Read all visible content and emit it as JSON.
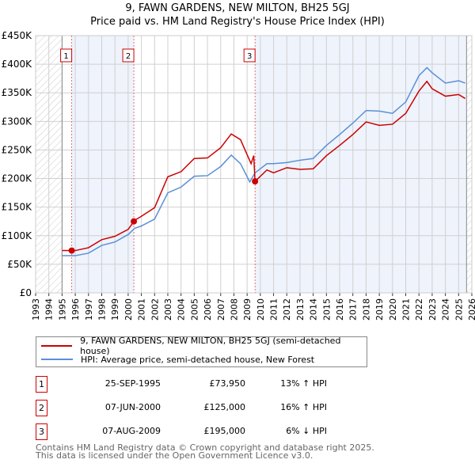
{
  "chart_data": {
    "type": "line",
    "title": "9, FAWN GARDENS, NEW MILTON, BH25 5GJ",
    "subtitle": "Price paid vs. HM Land Registry's House Price Index (HPI)",
    "xlim": [
      1993,
      2026
    ],
    "ylim": [
      0,
      450000
    ],
    "x_ticks": [
      "1993",
      "1994",
      "1995",
      "1996",
      "1997",
      "1998",
      "1999",
      "2000",
      "2001",
      "2002",
      "2003",
      "2004",
      "2005",
      "2006",
      "2007",
      "2008",
      "2009",
      "2010",
      "2011",
      "2012",
      "2013",
      "2014",
      "2015",
      "2016",
      "2017",
      "2018",
      "2019",
      "2020",
      "2021",
      "2022",
      "2023",
      "2024",
      "2025",
      "2026"
    ],
    "y_ticks": [
      {
        "v": 0,
        "label": "£0"
      },
      {
        "v": 50000,
        "label": "£50K"
      },
      {
        "v": 100000,
        "label": "£100K"
      },
      {
        "v": 150000,
        "label": "£150K"
      },
      {
        "v": 200000,
        "label": "£200K"
      },
      {
        "v": 250000,
        "label": "£250K"
      },
      {
        "v": 300000,
        "label": "£300K"
      },
      {
        "v": 350000,
        "label": "£350K"
      },
      {
        "v": 400000,
        "label": "£400K"
      },
      {
        "v": 450000,
        "label": "£450K"
      }
    ],
    "grid": true,
    "series": [
      {
        "name": "9, FAWN GARDENS, NEW MILTON, BH25 5GJ (semi-detached house)",
        "color": "#cc0000",
        "x": [
          1995,
          1996,
          1997,
          1998,
          1999,
          2000,
          2000.5,
          2001,
          2002,
          2003,
          2004,
          2005,
          2006,
          2007,
          2007.8,
          2008.5,
          2009.3,
          2009.5,
          2009.6,
          2010.5,
          2011,
          2012,
          2013,
          2014,
          2015,
          2016,
          2017,
          2018,
          2019,
          2020,
          2021,
          2022,
          2022.6,
          2023,
          2024,
          2025,
          2025.5
        ],
        "y": [
          74000,
          74000,
          79000,
          93000,
          99000,
          111000,
          127000,
          134000,
          149000,
          203000,
          212000,
          235000,
          236000,
          254000,
          278000,
          268000,
          226000,
          240000,
          195000,
          215000,
          210000,
          219000,
          216000,
          217000,
          240000,
          258000,
          277000,
          299000,
          293000,
          295000,
          314000,
          353000,
          370000,
          357000,
          344000,
          347000,
          340000
        ]
      },
      {
        "name": "HPI: Average price, semi-detached house, New Forest",
        "color": "#5b8fd6",
        "x": [
          1995,
          1996,
          1997,
          1998,
          1999,
          2000,
          2000.5,
          2001,
          2002,
          2003,
          2004,
          2005,
          2006,
          2007,
          2007.8,
          2008.5,
          2009.2,
          2009.6,
          2010.5,
          2011,
          2012,
          2013,
          2014,
          2015,
          2016,
          2017,
          2018,
          2019,
          2020,
          2021,
          2022,
          2022.6,
          2023,
          2024,
          2025,
          2025.5
        ],
        "y": [
          65000,
          65000,
          69500,
          83000,
          89000,
          102000,
          113000,
          117000,
          129000,
          175000,
          185000,
          204000,
          205000,
          221000,
          241000,
          226000,
          194000,
          210000,
          226000,
          226000,
          228000,
          232000,
          235000,
          258000,
          277000,
          297000,
          319000,
          318000,
          314000,
          334000,
          380000,
          394000,
          385000,
          367000,
          371000,
          367000
        ]
      }
    ],
    "sales": [
      {
        "label": "1",
        "x": 1995.73,
        "price": 73950,
        "date": "25-SEP-1995",
        "price_text": "£73,950",
        "hpi": "13% ↑ HPI"
      },
      {
        "label": "2",
        "x": 2000.43,
        "price": 125000,
        "date": "07-JUN-2000",
        "price_text": "£125,000",
        "hpi": "16% ↑ HPI"
      },
      {
        "label": "3",
        "x": 2009.6,
        "price": 195000,
        "date": "07-AUG-2009",
        "price_text": "£195,000",
        "hpi": "6% ↓ HPI"
      }
    ],
    "data_start": 1995,
    "data_end": 2025.6
  },
  "footer": {
    "line1": "Contains HM Land Registry data © Crown copyright and database right 2025.",
    "line2": "This data is licensed under the Open Government Licence v3.0."
  }
}
